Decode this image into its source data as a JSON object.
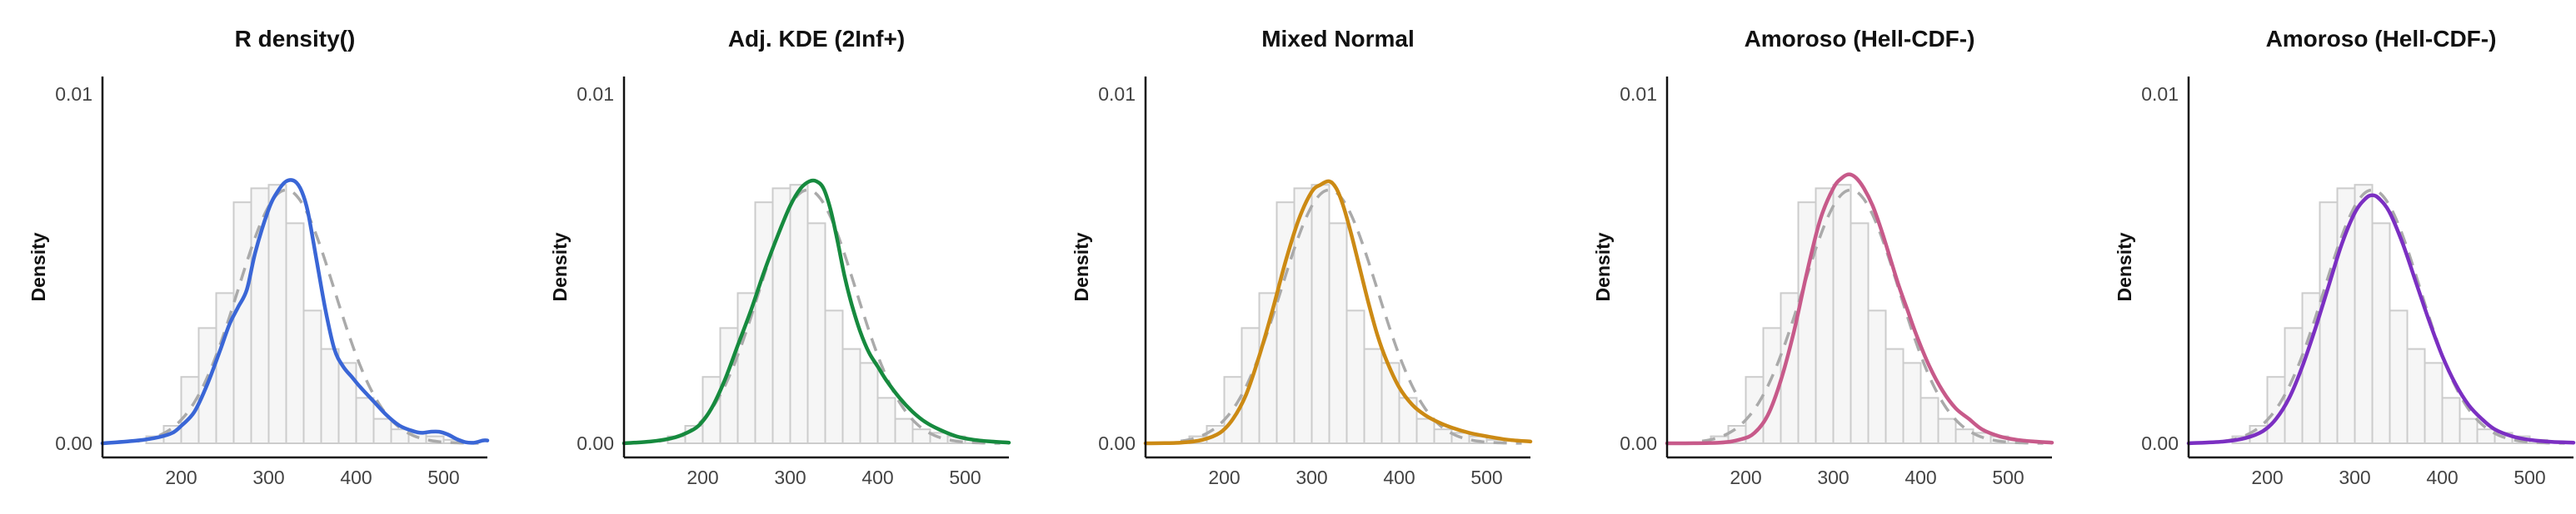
{
  "chart_data": [
    {
      "type": "histogram-density",
      "title": "R density()",
      "ylabel": "Density",
      "xlim": [
        110,
        550
      ],
      "ylim": [
        0,
        0.0105
      ],
      "x_ticks": [
        200,
        300,
        400,
        500
      ],
      "x_tick_labels": [
        "200",
        "300",
        "400",
        "500"
      ],
      "y_ticks": [
        0,
        0.01
      ],
      "y_tick_labels": [
        "0.00",
        "0.01"
      ],
      "grid": false,
      "color": "#3a66d6",
      "bins": {
        "start": 160,
        "width": 20,
        "values": [
          0.0002,
          0.0005,
          0.0019,
          0.0033,
          0.0043,
          0.0069,
          0.0073,
          0.0074,
          0.0063,
          0.0038,
          0.0027,
          0.0023,
          0.0013,
          0.0007,
          0.0004,
          0.0003,
          0.0002,
          0.0001
        ]
      },
      "reference_curve": {
        "mean": 320,
        "sd": 55
      },
      "fitted_curve": {
        "x": [
          110,
          150,
          175,
          190,
          200,
          215,
          230,
          245,
          255,
          265,
          275,
          285,
          300,
          310,
          320,
          330,
          338,
          345,
          355,
          365,
          375,
          385,
          395,
          405,
          420,
          435,
          450,
          465,
          475,
          485,
          495,
          505,
          515,
          525,
          535,
          545,
          550
        ],
        "y": [
          0,
          8e-05,
          0.00018,
          0.0003,
          0.0005,
          0.0009,
          0.0017,
          0.0027,
          0.0034,
          0.0039,
          0.0044,
          0.0055,
          0.0067,
          0.0072,
          0.0075,
          0.0075,
          0.0072,
          0.0066,
          0.0052,
          0.0038,
          0.0027,
          0.0022,
          0.0019,
          0.0016,
          0.0012,
          0.0008,
          0.0005,
          0.00035,
          0.0003,
          0.00033,
          0.00033,
          0.00025,
          0.00012,
          3e-05,
          2e-05,
          8e-05,
          8e-05
        ]
      }
    },
    {
      "type": "histogram-density",
      "title": "Adj. KDE (2Inf+)",
      "ylabel": "Density",
      "xlim": [
        110,
        550
      ],
      "ylim": [
        0,
        0.0105
      ],
      "x_ticks": [
        200,
        300,
        400,
        500
      ],
      "x_tick_labels": [
        "200",
        "300",
        "400",
        "500"
      ],
      "y_ticks": [
        0,
        0.01
      ],
      "y_tick_labels": [
        "0.00",
        "0.01"
      ],
      "grid": false,
      "color": "#168a3e",
      "bins": {
        "start": 160,
        "width": 20,
        "values": [
          0.0002,
          0.0005,
          0.0019,
          0.0033,
          0.0043,
          0.0069,
          0.0073,
          0.0074,
          0.0063,
          0.0038,
          0.0027,
          0.0023,
          0.0013,
          0.0007,
          0.0004,
          0.0003,
          0.0002,
          0.0001
        ]
      },
      "reference_curve": {
        "mean": 320,
        "sd": 55
      },
      "fitted_curve": {
        "x": [
          110,
          140,
          165,
          180,
          195,
          210,
          225,
          240,
          255,
          270,
          285,
          300,
          312,
          322,
          330,
          338,
          346,
          354,
          362,
          370,
          380,
          390,
          400,
          410,
          425,
          440,
          455,
          470,
          490,
          510,
          530,
          550
        ],
        "y": [
          0,
          5e-05,
          0.00015,
          0.00028,
          0.0005,
          0.001,
          0.0018,
          0.0028,
          0.0038,
          0.0049,
          0.0059,
          0.0068,
          0.0073,
          0.0075,
          0.0075,
          0.0073,
          0.0067,
          0.0058,
          0.0048,
          0.004,
          0.0032,
          0.0026,
          0.0022,
          0.0018,
          0.0013,
          0.0009,
          0.0006,
          0.0004,
          0.0002,
          0.0001,
          5e-05,
          2e-05
        ]
      }
    },
    {
      "type": "histogram-density",
      "title": "Mixed Normal",
      "ylabel": "Density",
      "xlim": [
        110,
        550
      ],
      "ylim": [
        0,
        0.0105
      ],
      "x_ticks": [
        200,
        300,
        400,
        500
      ],
      "x_tick_labels": [
        "200",
        "300",
        "400",
        "500"
      ],
      "y_ticks": [
        0,
        0.01
      ],
      "y_tick_labels": [
        "0.00",
        "0.01"
      ],
      "grid": false,
      "color": "#cc8a14",
      "bins": {
        "start": 160,
        "width": 20,
        "values": [
          0.0002,
          0.0005,
          0.0019,
          0.0033,
          0.0043,
          0.0069,
          0.0073,
          0.0074,
          0.0063,
          0.0038,
          0.0027,
          0.0023,
          0.0013,
          0.0007,
          0.0004,
          0.0003,
          0.0002,
          0.0001
        ]
      },
      "reference_curve": {
        "mean": 320,
        "sd": 55
      },
      "fitted_curve": {
        "x": [
          110,
          150,
          175,
          195,
          210,
          225,
          240,
          255,
          270,
          285,
          300,
          310,
          320,
          328,
          336,
          345,
          355,
          365,
          375,
          385,
          400,
          415,
          430,
          445,
          460,
          480,
          500,
          525,
          550
        ],
        "y": [
          0,
          2e-05,
          0.0001,
          0.0003,
          0.0007,
          0.0014,
          0.0025,
          0.0038,
          0.0052,
          0.0064,
          0.0072,
          0.0074,
          0.0075,
          0.0073,
          0.0068,
          0.006,
          0.005,
          0.004,
          0.0031,
          0.0024,
          0.0016,
          0.0011,
          0.0008,
          0.0006,
          0.00045,
          0.0003,
          0.0002,
          0.0001,
          5e-05
        ]
      }
    },
    {
      "type": "histogram-density",
      "title": "Amoroso (Hell-CDF-)",
      "ylabel": "Density",
      "xlim": [
        110,
        550
      ],
      "ylim": [
        0,
        0.0105
      ],
      "x_ticks": [
        200,
        300,
        400,
        500
      ],
      "x_tick_labels": [
        "200",
        "300",
        "400",
        "500"
      ],
      "y_ticks": [
        0,
        0.01
      ],
      "y_tick_labels": [
        "0.00",
        "0.01"
      ],
      "grid": false,
      "color": "#c75a8a",
      "bins": {
        "start": 160,
        "width": 20,
        "values": [
          0.0002,
          0.0005,
          0.0019,
          0.0033,
          0.0043,
          0.0069,
          0.0073,
          0.0074,
          0.0063,
          0.0038,
          0.0027,
          0.0023,
          0.0013,
          0.0007,
          0.0004,
          0.0003,
          0.0002,
          0.0001
        ]
      },
      "reference_curve": {
        "mean": 320,
        "sd": 55
      },
      "fitted_curve": {
        "x": [
          110,
          170,
          195,
          210,
          225,
          240,
          255,
          270,
          285,
          300,
          310,
          318,
          326,
          335,
          345,
          355,
          365,
          375,
          385,
          395,
          410,
          425,
          440,
          455,
          470,
          490,
          510,
          530,
          550
        ],
        "y": [
          0,
          2e-05,
          0.00012,
          0.0003,
          0.0008,
          0.0018,
          0.0032,
          0.0049,
          0.0064,
          0.0073,
          0.0076,
          0.0077,
          0.0076,
          0.0073,
          0.0068,
          0.0061,
          0.0053,
          0.0045,
          0.0038,
          0.0031,
          0.0022,
          0.0015,
          0.001,
          0.0007,
          0.0004,
          0.0002,
          0.0001,
          5e-05,
          2e-05
        ]
      }
    },
    {
      "type": "histogram-density",
      "title": "Amoroso (Hell-CDF-)",
      "ylabel": "Density",
      "xlim": [
        110,
        550
      ],
      "ylim": [
        0,
        0.0105
      ],
      "x_ticks": [
        200,
        300,
        400,
        500
      ],
      "x_tick_labels": [
        "200",
        "300",
        "400",
        "500"
      ],
      "y_ticks": [
        0,
        0.01
      ],
      "y_tick_labels": [
        "0.00",
        "0.01"
      ],
      "grid": false,
      "color": "#7b2fc2",
      "bins": {
        "start": 160,
        "width": 20,
        "values": [
          0.0002,
          0.0005,
          0.0019,
          0.0033,
          0.0043,
          0.0069,
          0.0073,
          0.0074,
          0.0063,
          0.0038,
          0.0027,
          0.0023,
          0.0013,
          0.0007,
          0.0004,
          0.0003,
          0.0002,
          0.0001
        ]
      },
      "reference_curve": {
        "mean": 320,
        "sd": 55
      },
      "fitted_curve": {
        "x": [
          110,
          150,
          175,
          195,
          210,
          225,
          240,
          255,
          270,
          285,
          300,
          312,
          320,
          328,
          340,
          355,
          370,
          385,
          400,
          415,
          430,
          445,
          460,
          480,
          500,
          525,
          550
        ],
        "y": [
          0,
          5e-05,
          0.00015,
          0.00035,
          0.0007,
          0.0013,
          0.0022,
          0.0033,
          0.0045,
          0.0057,
          0.0066,
          0.007,
          0.0071,
          0.007,
          0.0066,
          0.0057,
          0.0046,
          0.0035,
          0.0025,
          0.0017,
          0.0011,
          0.0007,
          0.0004,
          0.0002,
          0.0001,
          4e-05,
          2e-05
        ]
      }
    }
  ]
}
